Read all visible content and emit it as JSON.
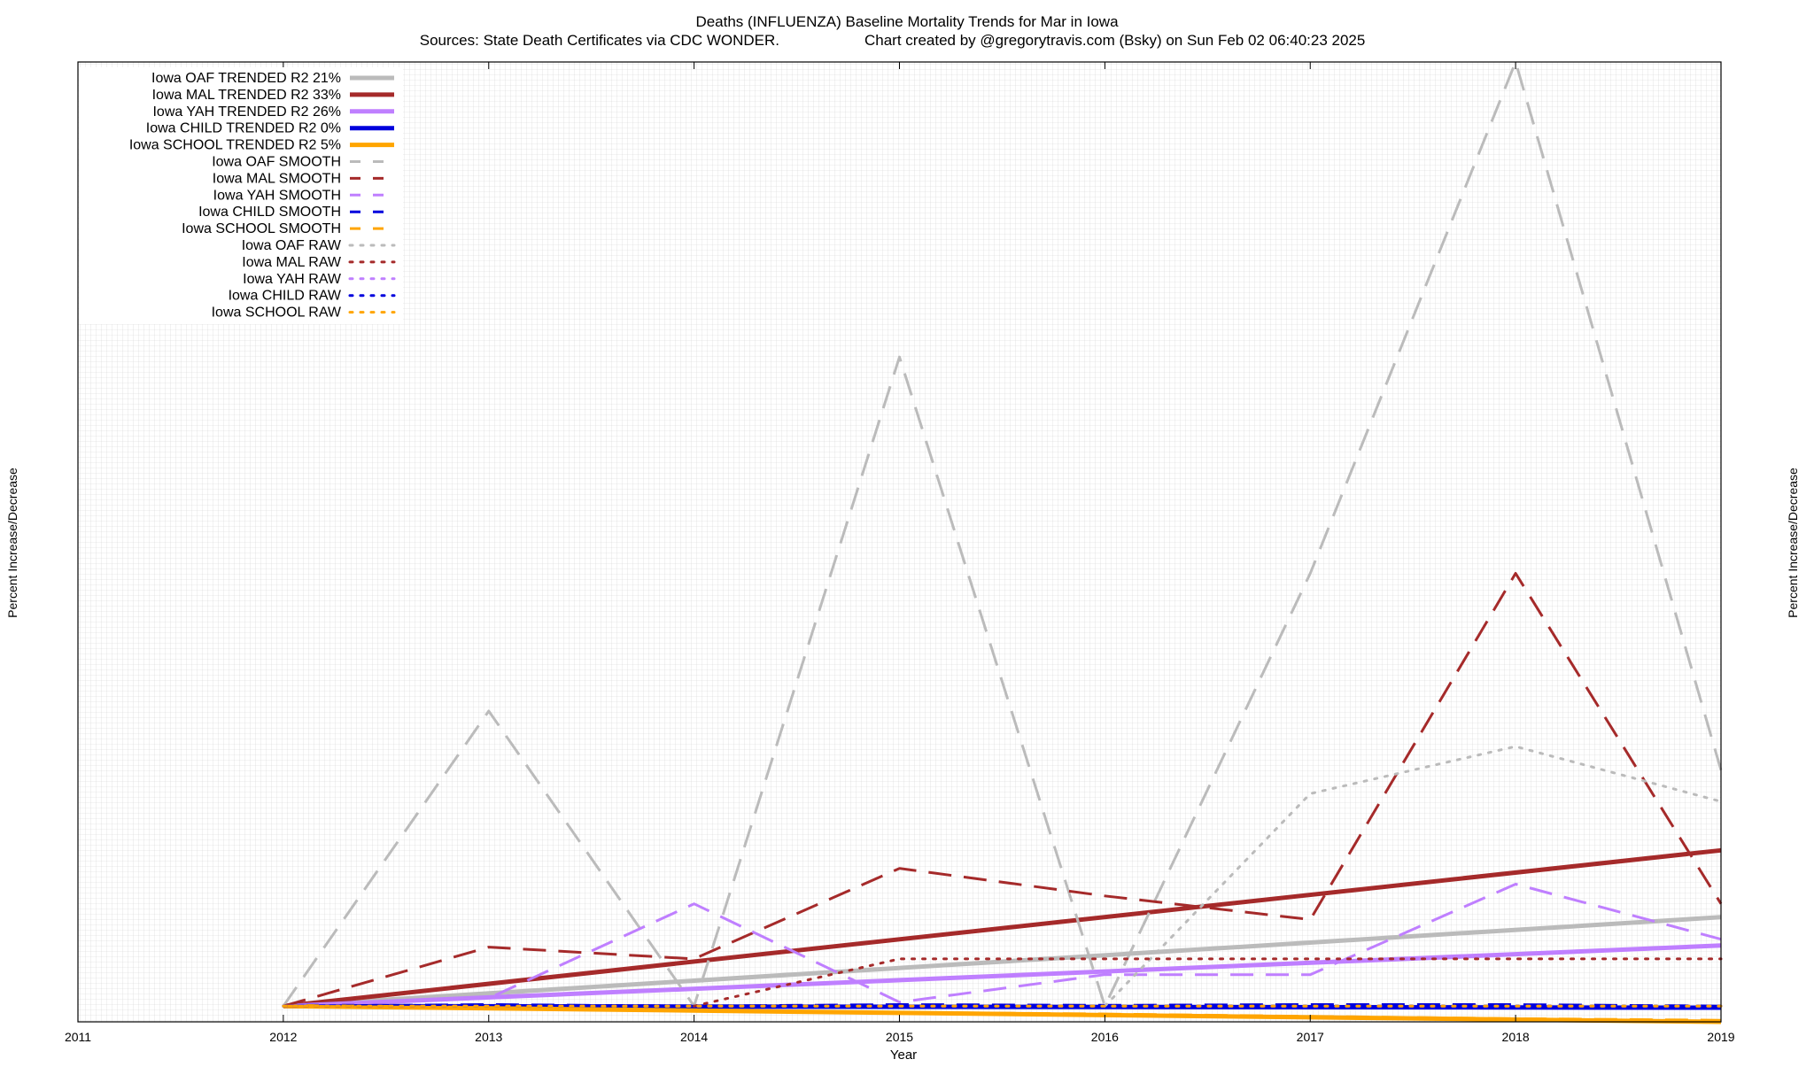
{
  "chart_data": {
    "type": "line",
    "title": "Deaths (INFLUENZA)  Baseline Mortality Trends for Mar in Iowa",
    "subtitle_left": "Sources: State Death Certificates via CDC WONDER.",
    "subtitle_right": "Chart created by @gregorytravis.com (Bsky) on Sun Feb 02 06:40:23 2025",
    "xlabel": "Year",
    "ylabel_left": "Percent Increase/Decrease",
    "ylabel_right": "Percent Increase/Decrease",
    "x_ticks": [
      "2011",
      "2012",
      "2013",
      "2014",
      "2015",
      "2016",
      "2017",
      "2018",
      "2019"
    ],
    "xlim": [
      2011,
      2019
    ],
    "ylim": [
      -20,
      1200
    ],
    "grid": true,
    "legend_position": "top-left",
    "series": [
      {
        "name": "Iowa OAF TRENDED R2  21%",
        "style": "solid",
        "color": "#bbbbbb",
        "x": [
          2012,
          2019
        ],
        "y": [
          0,
          113
        ]
      },
      {
        "name": "Iowa MAL TRENDED R2  33%",
        "style": "solid",
        "color": "#a52a2a",
        "x": [
          2012,
          2019
        ],
        "y": [
          0,
          198
        ]
      },
      {
        "name": "Iowa YAH TRENDED R2  26%",
        "style": "solid",
        "color": "#bf7fff",
        "x": [
          2012,
          2019
        ],
        "y": [
          0,
          77
        ]
      },
      {
        "name": "Iowa CHILD TRENDED R2   0%",
        "style": "solid",
        "color": "#0000dd",
        "x": [
          2012,
          2019
        ],
        "y": [
          0,
          -2
        ]
      },
      {
        "name": "Iowa SCHOOL TRENDED R2   5%",
        "style": "solid",
        "color": "#ffa500",
        "x": [
          2012,
          2019
        ],
        "y": [
          0,
          -20
        ]
      },
      {
        "name": "Iowa OAF SMOOTH",
        "style": "dashed",
        "color": "#bbbbbb",
        "x": [
          2012,
          2013,
          2014,
          2015,
          2016,
          2017,
          2018,
          2019
        ],
        "y": [
          0,
          375,
          0,
          825,
          0,
          550,
          1200,
          300
        ]
      },
      {
        "name": "Iowa MAL SMOOTH",
        "style": "dashed",
        "color": "#a52a2a",
        "x": [
          2012,
          2013,
          2014,
          2015,
          2016,
          2017,
          2018,
          2019
        ],
        "y": [
          0,
          75,
          60,
          175,
          140,
          110,
          550,
          130
        ]
      },
      {
        "name": "Iowa YAH SMOOTH",
        "style": "dashed",
        "color": "#bf7fff",
        "x": [
          2012,
          2013,
          2014,
          2015,
          2016,
          2017,
          2018,
          2019
        ],
        "y": [
          0,
          10,
          130,
          5,
          40,
          40,
          155,
          85
        ]
      },
      {
        "name": "Iowa CHILD SMOOTH",
        "style": "dashed",
        "color": "#0000dd",
        "x": [
          2012,
          2013,
          2014,
          2015,
          2016,
          2017,
          2018,
          2019
        ],
        "y": [
          0,
          2,
          0,
          2,
          1,
          2,
          2,
          0
        ]
      },
      {
        "name": "Iowa SCHOOL SMOOTH",
        "style": "dashed",
        "color": "#ffa500",
        "x": [
          2012,
          2013,
          2014,
          2015,
          2016,
          2017,
          2018,
          2019
        ],
        "y": [
          0,
          -2,
          -5,
          -8,
          -10,
          -13,
          -16,
          -18
        ]
      },
      {
        "name": "Iowa OAF RAW",
        "style": "dotted",
        "color": "#bbbbbb",
        "x": [
          2016,
          2017,
          2018,
          2019
        ],
        "y": [
          0,
          270,
          330,
          260
        ]
      },
      {
        "name": "Iowa MAL RAW",
        "style": "dotted",
        "color": "#a52a2a",
        "x": [
          2014,
          2015,
          2016,
          2017,
          2018,
          2019
        ],
        "y": [
          0,
          60,
          60,
          60,
          60,
          60
        ]
      },
      {
        "name": "Iowa YAH RAW",
        "style": "dotted",
        "color": "#bf7fff",
        "x": [
          2012,
          2019
        ],
        "y": [
          0,
          0
        ]
      },
      {
        "name": "Iowa CHILD RAW",
        "style": "dotted",
        "color": "#0000dd",
        "x": [
          2012,
          2019
        ],
        "y": [
          0,
          0
        ]
      },
      {
        "name": "Iowa SCHOOL RAW",
        "style": "dotted",
        "color": "#ffa500",
        "x": [
          2012,
          2019
        ],
        "y": [
          0,
          0
        ]
      }
    ]
  }
}
